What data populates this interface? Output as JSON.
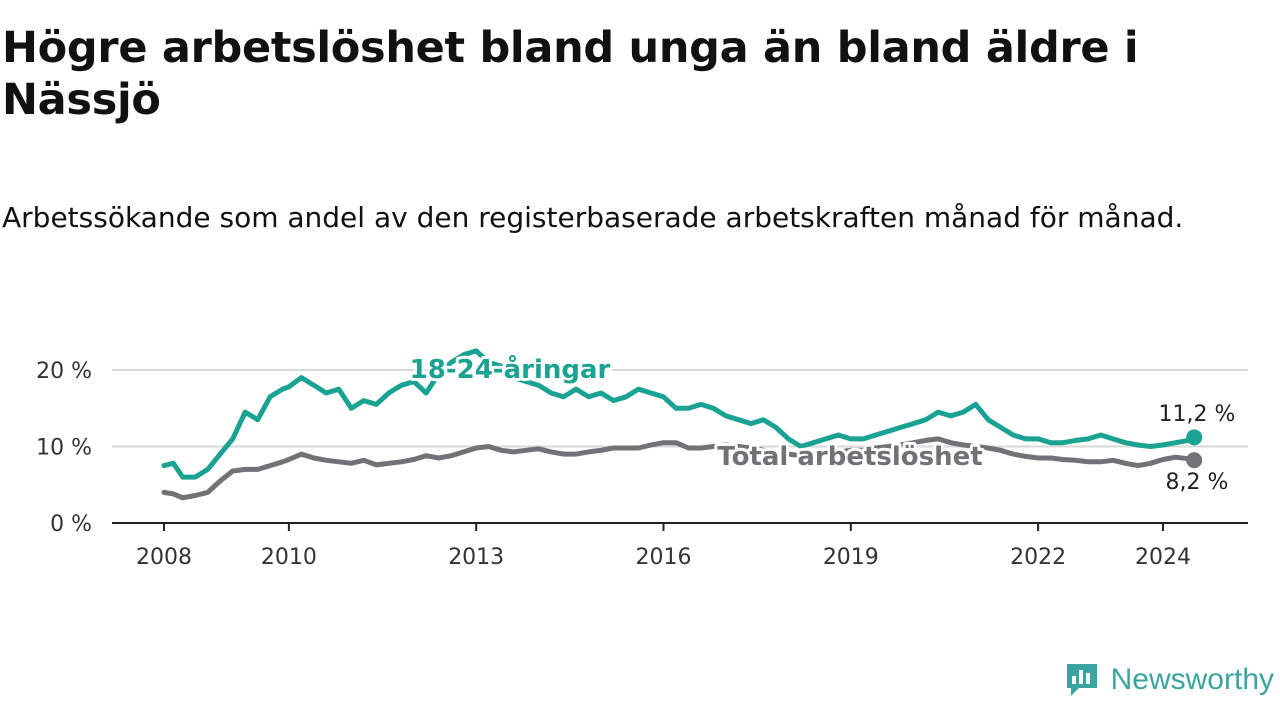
{
  "chart_data": {
    "type": "line",
    "title": "Högre arbetslöshet bland unga än bland äldre i Nässjö",
    "subtitle": "Arbetssökande som andel av den registerbaserade arbetskraften månad för månad.",
    "ylim": [
      0,
      20
    ],
    "yticks": [
      0,
      10,
      20
    ],
    "ytick_labels": [
      "0 %",
      "10 %",
      "20 %"
    ],
    "xlim": [
      2008,
      2024.6
    ],
    "xticks": [
      2008,
      2010,
      2013,
      2016,
      2019,
      2022,
      2024
    ],
    "xtick_labels": [
      "2008",
      "2010",
      "2013",
      "2016",
      "2019",
      "2022",
      "2024"
    ],
    "series": [
      {
        "name": "18-24-åringar",
        "label": "18-24-åringar",
        "color": "#1aa393",
        "end_label": "11,2 %",
        "x": [
          2008.0,
          2008.15,
          2008.3,
          2008.5,
          2008.7,
          2008.9,
          2009.1,
          2009.3,
          2009.5,
          2009.7,
          2009.9,
          2010.0,
          2010.2,
          2010.4,
          2010.6,
          2010.8,
          2011.0,
          2011.2,
          2011.4,
          2011.6,
          2011.8,
          2012.0,
          2012.2,
          2012.4,
          2012.6,
          2012.8,
          2013.0,
          2013.2,
          2013.4,
          2013.6,
          2013.8,
          2014.0,
          2014.2,
          2014.4,
          2014.6,
          2014.8,
          2015.0,
          2015.2,
          2015.4,
          2015.6,
          2015.8,
          2016.0,
          2016.2,
          2016.4,
          2016.6,
          2016.8,
          2017.0,
          2017.2,
          2017.4,
          2017.6,
          2017.8,
          2018.0,
          2018.2,
          2018.4,
          2018.6,
          2018.8,
          2019.0,
          2019.2,
          2019.4,
          2019.6,
          2019.8,
          2020.0,
          2020.2,
          2020.4,
          2020.6,
          2020.8,
          2021.0,
          2021.2,
          2021.4,
          2021.6,
          2021.8,
          2022.0,
          2022.2,
          2022.4,
          2022.6,
          2022.8,
          2023.0,
          2023.2,
          2023.4,
          2023.6,
          2023.8,
          2024.0,
          2024.2,
          2024.4,
          2024.5
        ],
        "values": [
          7.5,
          7.8,
          6.0,
          6.0,
          7.0,
          9.0,
          11.0,
          14.5,
          13.5,
          16.5,
          17.5,
          17.8,
          19.0,
          18.0,
          17.0,
          17.5,
          15.0,
          16.0,
          15.5,
          17.0,
          18.0,
          18.5,
          17.0,
          19.5,
          21.0,
          22.0,
          22.5,
          21.0,
          20.5,
          19.0,
          18.5,
          18.0,
          17.0,
          16.5,
          17.5,
          16.5,
          17.0,
          16.0,
          16.5,
          17.5,
          17.0,
          16.5,
          15.0,
          15.0,
          15.5,
          15.0,
          14.0,
          13.5,
          13.0,
          13.5,
          12.5,
          11.0,
          10.0,
          10.5,
          11.0,
          11.5,
          11.0,
          11.0,
          11.5,
          12.0,
          12.5,
          13.0,
          13.5,
          14.5,
          14.0,
          14.5,
          15.5,
          13.5,
          12.5,
          11.5,
          11.0,
          11.0,
          10.5,
          10.5,
          10.8,
          11.0,
          11.5,
          11.0,
          10.5,
          10.2,
          10.0,
          10.2,
          10.5,
          10.8,
          11.2
        ]
      },
      {
        "name": "Total arbetslöshet",
        "label": "Total arbetslöshet",
        "color": "#727175",
        "end_label": "8,2 %",
        "x": [
          2008.0,
          2008.15,
          2008.3,
          2008.5,
          2008.7,
          2008.9,
          2009.1,
          2009.3,
          2009.5,
          2009.7,
          2009.9,
          2010.0,
          2010.2,
          2010.4,
          2010.6,
          2010.8,
          2011.0,
          2011.2,
          2011.4,
          2011.6,
          2011.8,
          2012.0,
          2012.2,
          2012.4,
          2012.6,
          2012.8,
          2013.0,
          2013.2,
          2013.4,
          2013.6,
          2013.8,
          2014.0,
          2014.2,
          2014.4,
          2014.6,
          2014.8,
          2015.0,
          2015.2,
          2015.4,
          2015.6,
          2015.8,
          2016.0,
          2016.2,
          2016.4,
          2016.6,
          2016.8,
          2017.0,
          2017.2,
          2017.4,
          2017.6,
          2017.8,
          2018.0,
          2018.2,
          2018.4,
          2018.6,
          2018.8,
          2019.0,
          2019.2,
          2019.4,
          2019.6,
          2019.8,
          2020.0,
          2020.2,
          2020.4,
          2020.6,
          2020.8,
          2021.0,
          2021.2,
          2021.4,
          2021.6,
          2021.8,
          2022.0,
          2022.2,
          2022.4,
          2022.6,
          2022.8,
          2023.0,
          2023.2,
          2023.4,
          2023.6,
          2023.8,
          2024.0,
          2024.2,
          2024.4,
          2024.5
        ],
        "values": [
          4.0,
          3.8,
          3.3,
          3.6,
          4.0,
          5.5,
          6.8,
          7.0,
          7.0,
          7.5,
          8.0,
          8.3,
          9.0,
          8.5,
          8.2,
          8.0,
          7.8,
          8.2,
          7.6,
          7.8,
          8.0,
          8.3,
          8.8,
          8.5,
          8.8,
          9.3,
          9.8,
          10.0,
          9.5,
          9.3,
          9.5,
          9.7,
          9.3,
          9.0,
          9.0,
          9.3,
          9.5,
          9.8,
          9.8,
          9.8,
          10.2,
          10.5,
          10.5,
          9.8,
          9.8,
          10.0,
          10.2,
          10.0,
          9.8,
          9.5,
          9.2,
          9.0,
          8.8,
          8.8,
          9.0,
          9.3,
          9.5,
          9.5,
          9.8,
          10.0,
          10.2,
          10.5,
          10.8,
          11.0,
          10.5,
          10.2,
          10.0,
          9.8,
          9.5,
          9.0,
          8.7,
          8.5,
          8.5,
          8.3,
          8.2,
          8.0,
          8.0,
          8.2,
          7.8,
          7.5,
          7.8,
          8.3,
          8.6,
          8.4,
          8.2
        ]
      }
    ],
    "grid": true
  },
  "branding": {
    "name": "Newsworthy"
  }
}
